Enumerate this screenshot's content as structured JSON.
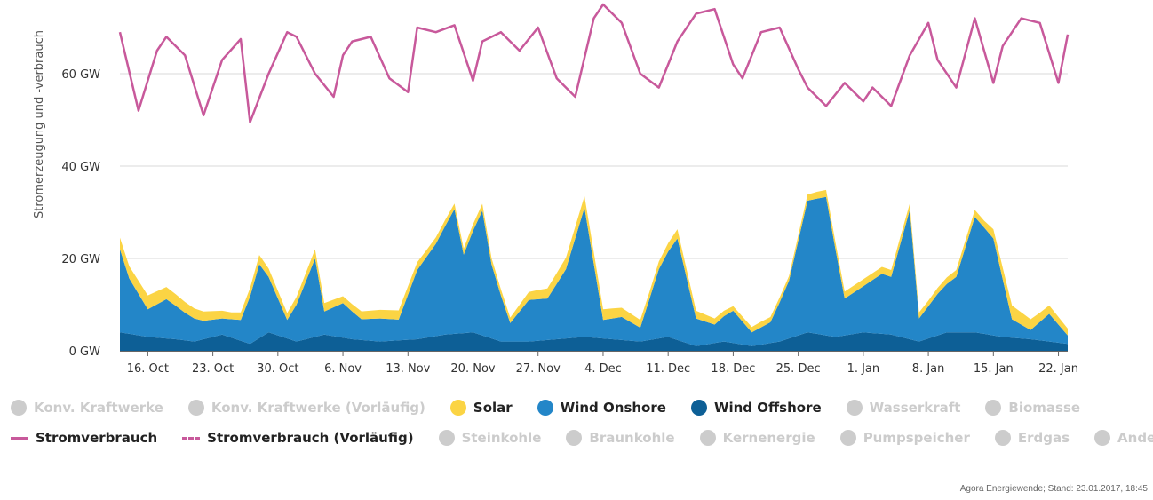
{
  "chart_data": {
    "type": "area",
    "title": "",
    "ylabel": "Stromerzeugung und -verbrauch",
    "y_unit": "GW",
    "ylim": [
      0,
      75
    ],
    "y_ticks": [
      0,
      20,
      40,
      60
    ],
    "y_tick_labels": [
      "0 GW",
      "20 GW",
      "40 GW",
      "60 GW"
    ],
    "x_range": [
      "2016-10-13",
      "2017-01-23"
    ],
    "x_tick_dates": [
      "2016-10-16",
      "2016-10-23",
      "2016-10-30",
      "2016-11-06",
      "2016-11-13",
      "2016-11-20",
      "2016-11-27",
      "2016-12-04",
      "2016-12-11",
      "2016-12-18",
      "2016-12-25",
      "2017-01-01",
      "2017-01-08",
      "2017-01-15",
      "2017-01-22"
    ],
    "x_tick_labels": [
      "16. Oct",
      "23. Oct",
      "30. Oct",
      "6. Nov",
      "13. Nov",
      "20. Nov",
      "27. Nov",
      "4. Dec",
      "11. Dec",
      "18. Dec",
      "25. Dec",
      "1. Jan",
      "8. Jan",
      "15. Jan",
      "22. Jan"
    ],
    "grid": "horizontal",
    "legend_position": "bottom",
    "series": [
      {
        "name": "Wind Offshore",
        "kind": "area",
        "color": "#0d5f96",
        "x": [
          "2016-10-13",
          "2016-10-16",
          "2016-10-19",
          "2016-10-21",
          "2016-10-24",
          "2016-10-27",
          "2016-10-29",
          "2016-11-01",
          "2016-11-04",
          "2016-11-07",
          "2016-11-10",
          "2016-11-14",
          "2016-11-17",
          "2016-11-20",
          "2016-11-23",
          "2016-11-26",
          "2016-11-29",
          "2016-12-02",
          "2016-12-05",
          "2016-12-08",
          "2016-12-11",
          "2016-12-14",
          "2016-12-17",
          "2016-12-20",
          "2016-12-23",
          "2016-12-26",
          "2016-12-29",
          "2017-01-01",
          "2017-01-04",
          "2017-01-07",
          "2017-01-10",
          "2017-01-13",
          "2017-01-16",
          "2017-01-19",
          "2017-01-23"
        ],
        "values": [
          4,
          3,
          2.5,
          2,
          3.5,
          1.5,
          4,
          2,
          3.5,
          2.5,
          2,
          2.5,
          3.5,
          4,
          2,
          2,
          2.5,
          3,
          2.5,
          2,
          3,
          1,
          2,
          1,
          2,
          4,
          3,
          4,
          3.5,
          2,
          4,
          4,
          3,
          2.5,
          1.5
        ]
      },
      {
        "name": "Wind Onshore",
        "kind": "area",
        "color": "#2386c8",
        "x": [
          "2016-10-13",
          "2016-10-14",
          "2016-10-16",
          "2016-10-18",
          "2016-10-20",
          "2016-10-22",
          "2016-10-24",
          "2016-10-26",
          "2016-10-28",
          "2016-10-29",
          "2016-10-31",
          "2016-11-01",
          "2016-11-03",
          "2016-11-04",
          "2016-11-06",
          "2016-11-08",
          "2016-11-10",
          "2016-11-12",
          "2016-11-14",
          "2016-11-16",
          "2016-11-18",
          "2016-11-19",
          "2016-11-21",
          "2016-11-22",
          "2016-11-24",
          "2016-11-26",
          "2016-11-28",
          "2016-11-30",
          "2016-12-02",
          "2016-12-04",
          "2016-12-06",
          "2016-12-08",
          "2016-12-10",
          "2016-12-12",
          "2016-12-14",
          "2016-12-16",
          "2016-12-18",
          "2016-12-20",
          "2016-12-22",
          "2016-12-24",
          "2016-12-26",
          "2016-12-28",
          "2016-12-30",
          "2017-01-01",
          "2017-01-03",
          "2017-01-04",
          "2017-01-06",
          "2017-01-07",
          "2017-01-09",
          "2017-01-11",
          "2017-01-13",
          "2017-01-15",
          "2017-01-17",
          "2017-01-19",
          "2017-01-21",
          "2017-01-23"
        ],
        "values": [
          18,
          12,
          6,
          8.5,
          6,
          4,
          3.5,
          4.5,
          16,
          12,
          4,
          8,
          17,
          5,
          7.5,
          4.5,
          5,
          4.5,
          15,
          20,
          27,
          17,
          27,
          16,
          4,
          9,
          9,
          15,
          28,
          4,
          5,
          3,
          15,
          22,
          6,
          4,
          7,
          3,
          4.5,
          12.5,
          28.5,
          30,
          8,
          10,
          13,
          12.5,
          28,
          5,
          9,
          12,
          25,
          21,
          4,
          2,
          6,
          1.8
        ]
      },
      {
        "name": "Solar",
        "kind": "area",
        "color": "#fbd444",
        "x": [
          "2016-10-13",
          "2016-10-16",
          "2016-10-19",
          "2016-10-22",
          "2016-10-25",
          "2016-10-28",
          "2016-10-31",
          "2016-11-03",
          "2016-11-06",
          "2016-11-09",
          "2016-11-12",
          "2016-11-15",
          "2016-11-18",
          "2016-11-21",
          "2016-11-24",
          "2016-11-27",
          "2016-11-30",
          "2016-12-03",
          "2016-12-06",
          "2016-12-09",
          "2016-12-12",
          "2016-12-15",
          "2016-12-18",
          "2016-12-21",
          "2016-12-24",
          "2016-12-27",
          "2016-12-30",
          "2017-01-02",
          "2017-01-05",
          "2017-01-08",
          "2017-01-11",
          "2017-01-14",
          "2017-01-17",
          "2017-01-20",
          "2017-01-23"
        ],
        "values": [
          2.5,
          3,
          2.5,
          2,
          1.5,
          2,
          1.5,
          2,
          1.5,
          1.8,
          2,
          1.5,
          1.2,
          1.5,
          1.2,
          2,
          2.5,
          2.5,
          2,
          1.5,
          2,
          1.5,
          1,
          1.2,
          1,
          1.5,
          1.5,
          1.5,
          1.5,
          1.2,
          1.5,
          1.5,
          3,
          2,
          1.5
        ]
      },
      {
        "name": "Stromverbrauch",
        "kind": "line",
        "color": "#c8599b",
        "x": [
          "2016-10-13",
          "2016-10-15",
          "2016-10-17",
          "2016-10-18",
          "2016-10-20",
          "2016-10-22",
          "2016-10-24",
          "2016-10-26",
          "2016-10-27",
          "2016-10-29",
          "2016-10-31",
          "2016-11-01",
          "2016-11-03",
          "2016-11-05",
          "2016-11-06",
          "2016-11-07",
          "2016-11-09",
          "2016-11-11",
          "2016-11-13",
          "2016-11-14",
          "2016-11-16",
          "2016-11-18",
          "2016-11-20",
          "2016-11-21",
          "2016-11-23",
          "2016-11-25",
          "2016-11-27",
          "2016-11-29",
          "2016-12-01",
          "2016-12-03",
          "2016-12-04",
          "2016-12-06",
          "2016-12-08",
          "2016-12-10",
          "2016-12-12",
          "2016-12-14",
          "2016-12-16",
          "2016-12-18",
          "2016-12-19",
          "2016-12-21",
          "2016-12-23",
          "2016-12-25",
          "2016-12-26",
          "2016-12-28",
          "2016-12-30",
          "2017-01-01",
          "2017-01-02",
          "2017-01-04",
          "2017-01-06",
          "2017-01-08",
          "2017-01-09",
          "2017-01-11",
          "2017-01-13",
          "2017-01-15",
          "2017-01-16",
          "2017-01-18",
          "2017-01-20",
          "2017-01-22",
          "2017-01-23"
        ],
        "values": [
          69,
          52,
          65,
          68,
          64,
          51,
          63,
          67.5,
          49.5,
          60,
          69,
          68,
          60,
          55,
          64,
          67,
          68,
          59,
          56,
          70,
          69,
          70.5,
          58.5,
          67,
          69,
          65,
          70,
          59,
          55,
          72,
          75,
          71,
          60,
          57,
          67,
          73,
          74,
          62,
          59,
          69,
          70,
          61,
          57,
          53,
          58,
          54,
          57,
          53,
          64,
          71,
          63,
          57,
          72,
          58,
          66,
          72,
          71,
          58,
          68.5
        ]
      },
      {
        "name": "Stromverbrauch (Vorläufig)",
        "kind": "dashed-line",
        "color": "#c8599b",
        "x": [],
        "values": []
      }
    ]
  },
  "legend": {
    "row1": [
      {
        "label": "Konv. Kraftwerke",
        "color": "#cccccc",
        "active": false,
        "symbol": "dot"
      },
      {
        "label": "Konv. Kraftwerke (Vorläufig)",
        "color": "#cccccc",
        "active": false,
        "symbol": "dot"
      },
      {
        "label": "Solar",
        "color": "#fbd444",
        "active": true,
        "symbol": "dot"
      },
      {
        "label": "Wind Onshore",
        "color": "#2386c8",
        "active": true,
        "symbol": "dot"
      },
      {
        "label": "Wind Offshore",
        "color": "#0d5f96",
        "active": true,
        "symbol": "dot"
      },
      {
        "label": "Wasserkraft",
        "color": "#cccccc",
        "active": false,
        "symbol": "dot"
      },
      {
        "label": "Biomasse",
        "color": "#cccccc",
        "active": false,
        "symbol": "dot"
      }
    ],
    "row2": [
      {
        "label": "Stromverbrauch",
        "color": "#c8599b",
        "active": true,
        "symbol": "line"
      },
      {
        "label": "Stromverbrauch (Vorläufig)",
        "color": "#c8599b",
        "active": true,
        "symbol": "dashed"
      },
      {
        "label": "Steinkohle",
        "color": "#cccccc",
        "active": false,
        "symbol": "dot"
      },
      {
        "label": "Braunkohle",
        "color": "#cccccc",
        "active": false,
        "symbol": "dot"
      },
      {
        "label": "Kernenergie",
        "color": "#cccccc",
        "active": false,
        "symbol": "dot"
      },
      {
        "label": "Pumpspeicher",
        "color": "#cccccc",
        "active": false,
        "symbol": "dot"
      },
      {
        "label": "Erdgas",
        "color": "#cccccc",
        "active": false,
        "symbol": "dot"
      },
      {
        "label": "Andere",
        "color": "#cccccc",
        "active": false,
        "symbol": "dot"
      }
    ]
  },
  "credit": "Agora Energiewende; Stand: 23.01.2017, 18:45"
}
